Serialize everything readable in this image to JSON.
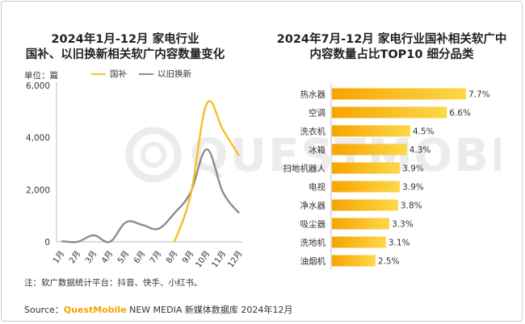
{
  "watermark": {
    "text": "QUESTMOBILE"
  },
  "left_chart": {
    "title_line1": "2024年1月-12月 家电行业",
    "title_line2": "国补、以旧换新相关软广内容数量变化",
    "unit": "单位：篇",
    "legend": [
      {
        "name": "国补",
        "color": "#f6bf26"
      },
      {
        "name": "以旧换新",
        "color": "#8c8c8c"
      }
    ]
  },
  "right_chart": {
    "title_line1": "2024年7月-12月 家电行业国补相关软广中",
    "title_line2": "内容数量占比TOP10 细分品类"
  },
  "note": "注：软广数据统计平台：抖音、快手、小红书。",
  "source": {
    "prefix": "Source：",
    "brand": "QuestMobile",
    "suffix": " NEW MEDIA 新媒体数据库 2024年12月"
  },
  "chart_data": [
    {
      "type": "line",
      "categories": [
        "1月",
        "2月",
        "3月",
        "4月",
        "5月",
        "6月",
        "7月",
        "8月",
        "9月",
        "10月",
        "11月",
        "12月"
      ],
      "series": [
        {
          "name": "国补",
          "color": "#f6bf26",
          "values": [
            0,
            0,
            0,
            0,
            0,
            0,
            0,
            0,
            1800,
            5300,
            4300,
            3300
          ]
        },
        {
          "name": "以旧换新",
          "color": "#8c8c8c",
          "values": [
            20,
            0,
            250,
            0,
            750,
            650,
            500,
            1100,
            1900,
            3550,
            1900,
            1100
          ]
        }
      ],
      "yticks": [
        "6,000",
        "4,000",
        "2,000",
        "0"
      ],
      "ylim": [
        0,
        6000
      ],
      "grid": false
    },
    {
      "type": "bar",
      "orientation": "horizontal",
      "categories": [
        "热水器",
        "空调",
        "洗衣机",
        "冰箱",
        "扫地机器人",
        "电视",
        "净水器",
        "吸尘器",
        "洗地机",
        "油烟机"
      ],
      "values": [
        7.7,
        6.6,
        4.5,
        4.3,
        3.9,
        3.9,
        3.8,
        3.3,
        3.1,
        2.5
      ],
      "labels": [
        "7.7%",
        "6.6%",
        "4.5%",
        "4.3%",
        "3.9%",
        "3.9%",
        "3.8%",
        "3.3%",
        "3.1%",
        "2.5%"
      ],
      "color_start": "#f7a400",
      "color_end": "#fcd84a"
    }
  ]
}
